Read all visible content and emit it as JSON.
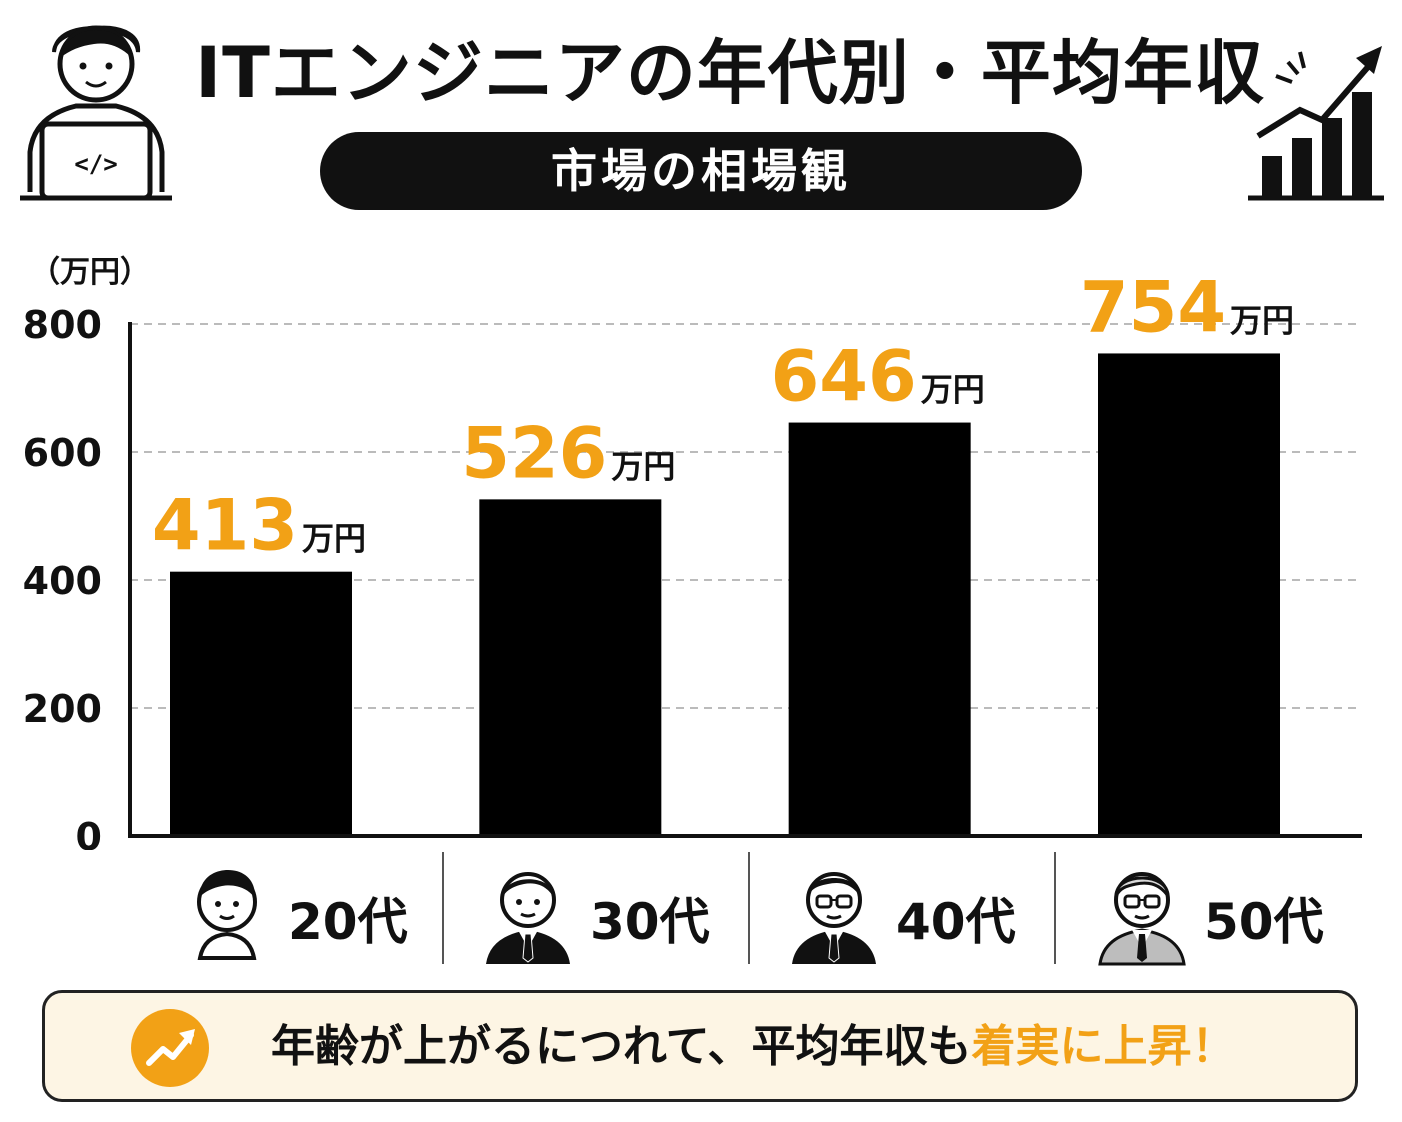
{
  "header": {
    "title": "ITエンジニアの年代別・平均年収",
    "subtitle": "市場の相場観",
    "left_icon": "engineer-laptop-icon",
    "right_icon": "rising-bar-chart-icon"
  },
  "chart_data": {
    "type": "bar",
    "categories": [
      "20代",
      "30代",
      "40代",
      "50代"
    ],
    "values": [
      413,
      526,
      646,
      754
    ],
    "value_unit_label": "万円",
    "ylabel": "（万円）",
    "ylim": [
      0,
      800
    ],
    "y_ticks": [
      "0",
      "200",
      "400",
      "600",
      "800"
    ],
    "y_tick_values": [
      0,
      200,
      400,
      600,
      800
    ],
    "grid": true,
    "bar_color": "#000000",
    "value_label_color": "#f2a116",
    "category_icons": [
      "young-man-casual-icon",
      "man-suit-icon",
      "man-glasses-suit-icon",
      "senior-man-glasses-suit-icon"
    ]
  },
  "takeaway": {
    "icon": "trend-up-arrow-icon",
    "text_main": "年齢が上がるにつれて、平均年収も",
    "text_highlight": "着実に上昇！",
    "accent_color": "#f2a116"
  }
}
